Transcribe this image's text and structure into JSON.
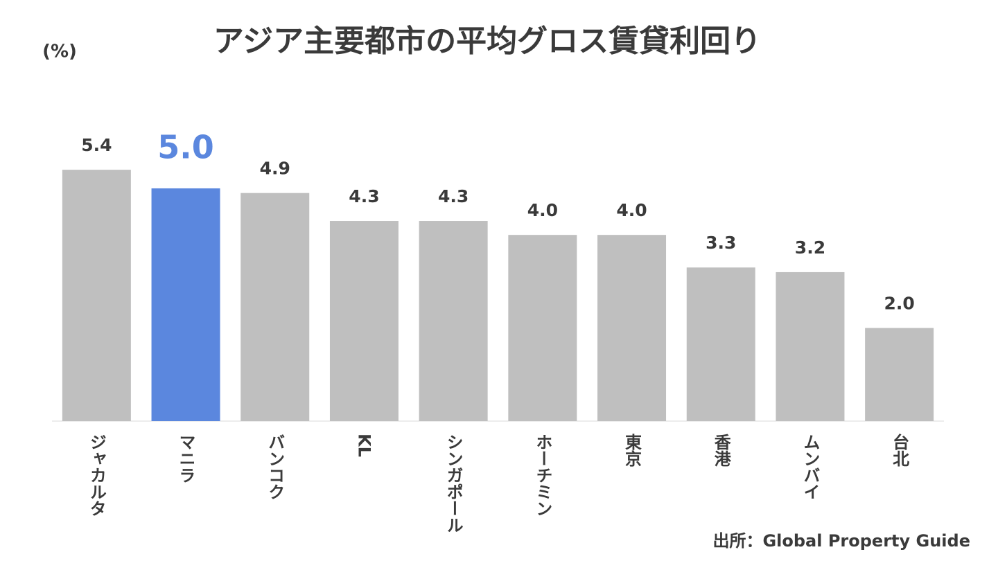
{
  "chart_data": {
    "type": "bar",
    "title": "アジア主要都市の平均グロス賃貸利回り",
    "unit_label": "(%)",
    "source": "出所：Global Property Guide",
    "categories": [
      "ジャカルタ",
      "マニラ",
      "バンコク",
      "KL",
      "シンガポール",
      "ホーチミン",
      "東京",
      "香港",
      "ムンバイ",
      "台北"
    ],
    "values": [
      5.4,
      5.0,
      4.9,
      4.3,
      4.3,
      4.0,
      4.0,
      3.3,
      3.2,
      2.0
    ],
    "value_labels": [
      "5.4",
      "5.0",
      "4.9",
      "4.3",
      "4.3",
      "4.0",
      "4.0",
      "3.3",
      "3.2",
      "2.0"
    ],
    "colors": [
      "#bfbfbf",
      "#5b87de",
      "#bfbfbf",
      "#bfbfbf",
      "#bfbfbf",
      "#bfbfbf",
      "#bfbfbf",
      "#bfbfbf",
      "#bfbfbf",
      "#bfbfbf"
    ],
    "ylim": [
      0,
      6.8
    ]
  }
}
